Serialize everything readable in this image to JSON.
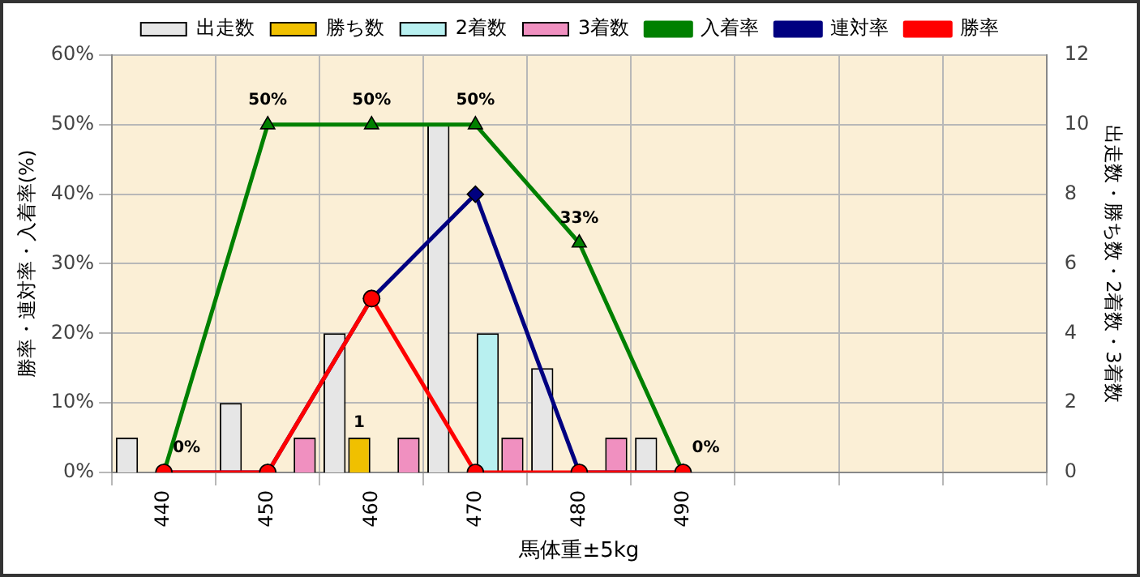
{
  "chart_data": {
    "type": "bar",
    "xlabel": "馬体重±5kg",
    "ylabel": "勝率・連対率・入着率(%)",
    "y2label": "出走数・勝ち数・2着数・3着数",
    "categories": [
      "440",
      "450",
      "460",
      "470",
      "480",
      "490",
      null,
      null,
      null
    ],
    "series": [
      {
        "name": "出走数",
        "axis": "y2",
        "color": "#e6e6e6",
        "values": [
          1,
          2,
          4,
          10,
          3,
          1,
          null,
          null,
          null
        ]
      },
      {
        "name": "勝ち数",
        "axis": "y2",
        "color": "#f0c000",
        "values": [
          0,
          0,
          1,
          0,
          0,
          0,
          null,
          null,
          null
        ],
        "value_labels": [
          null,
          null,
          "1",
          null,
          null,
          null,
          null,
          null,
          null
        ]
      },
      {
        "name": "2着数",
        "axis": "y2",
        "color": "#b8f0f0",
        "values": [
          0,
          0,
          0,
          4,
          0,
          0,
          null,
          null,
          null
        ]
      },
      {
        "name": "3着数",
        "axis": "y2",
        "color": "#f090c0",
        "values": [
          0,
          1,
          1,
          1,
          1,
          0,
          null,
          null,
          null
        ]
      },
      {
        "name": "入着率",
        "type": "line",
        "marker": "triangle",
        "color": "#008000",
        "values": [
          0,
          50,
          50,
          50,
          33,
          0,
          null,
          null,
          null
        ],
        "value_labels": [
          "0%",
          "50%",
          "50%",
          "50%",
          "33%",
          "0%",
          null,
          null,
          null
        ]
      },
      {
        "name": "連対率",
        "type": "line",
        "marker": "diamond",
        "color": "#000080",
        "values": [
          0,
          0,
          25,
          40,
          0,
          0,
          null,
          null,
          null
        ]
      },
      {
        "name": "勝率",
        "type": "line",
        "marker": "circle",
        "color": "#ff0000",
        "values": [
          0,
          0,
          25,
          0,
          0,
          0,
          null,
          null,
          null
        ]
      }
    ],
    "ylim": [
      0,
      60
    ],
    "yticks": [
      {
        "value": 0,
        "label": "0%"
      },
      {
        "value": 10,
        "label": "10%"
      },
      {
        "value": 20,
        "label": "20%"
      },
      {
        "value": 30,
        "label": "30%"
      },
      {
        "value": 40,
        "label": "40%"
      },
      {
        "value": 50,
        "label": "50%"
      },
      {
        "value": 60,
        "label": "60%"
      }
    ],
    "y2lim": [
      0,
      12
    ],
    "y2ticks": [
      0,
      2,
      4,
      6,
      8,
      10,
      12
    ],
    "grid": true,
    "legend": "top",
    "line_style": "solid"
  }
}
